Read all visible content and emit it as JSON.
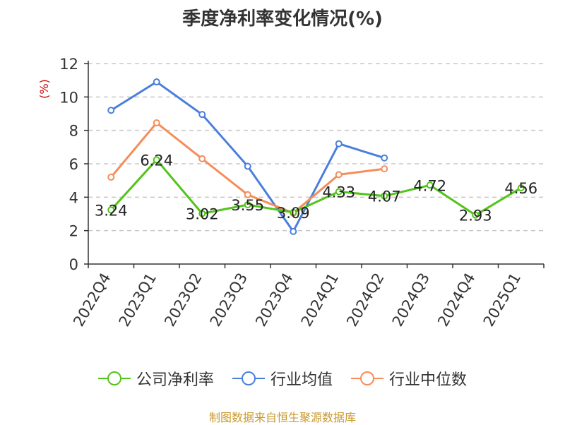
{
  "chart_data": {
    "type": "line",
    "title": "季度净利率变化情况(%)",
    "ylabel": "(%)",
    "xlabel": "",
    "categories": [
      "2022Q4",
      "2023Q1",
      "2023Q2",
      "2023Q3",
      "2023Q4",
      "2024Q1",
      "2024Q2",
      "2024Q3",
      "2024Q4",
      "2025Q1"
    ],
    "ylim": [
      0,
      12
    ],
    "yticks": [
      0,
      2,
      4,
      6,
      8,
      10,
      12
    ],
    "grid": true,
    "legend_position": "bottom",
    "series": [
      {
        "name": "公司净利率",
        "color": "#52c41a",
        "values": [
          3.24,
          6.24,
          3.02,
          3.55,
          3.09,
          4.33,
          4.07,
          4.72,
          2.93,
          4.56
        ],
        "labels": [
          "3.24",
          "6.24",
          "3.02",
          "3.55",
          "3.09",
          "4.33",
          "4.07",
          "4.72",
          "2.93",
          "4.56"
        ]
      },
      {
        "name": "行业均值",
        "color": "#4a7fdc",
        "values": [
          9.2,
          10.9,
          8.95,
          5.85,
          1.95,
          7.2,
          6.35,
          null,
          null,
          null
        ]
      },
      {
        "name": "行业中位数",
        "color": "#f58d5a",
        "values": [
          5.2,
          8.45,
          6.3,
          4.15,
          3.05,
          5.35,
          5.7,
          null,
          null,
          null
        ]
      }
    ]
  },
  "footer": {
    "source": "制图数据来自恒生聚源数据库"
  }
}
